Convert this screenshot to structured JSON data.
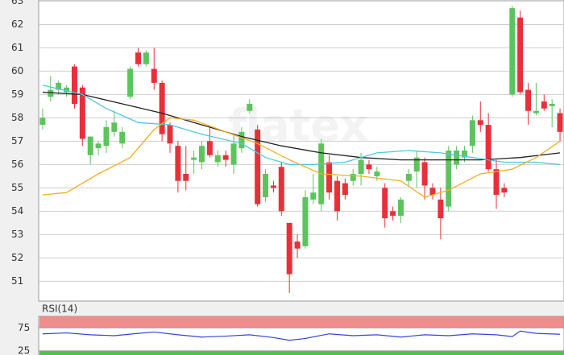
{
  "chart_data": [
    {
      "type": "candlestick",
      "watermark": "flatex",
      "up_color": "#5cc45c",
      "down_color": "#e8303a",
      "ylim": [
        50.15,
        63.05
      ],
      "yticks": [
        51,
        52,
        53,
        54,
        55,
        56,
        57,
        58,
        59,
        60,
        61,
        62,
        63
      ],
      "grid": true,
      "open": [
        57.7,
        58.9,
        59.2,
        59.1,
        60.2,
        59.3,
        56.4,
        56.7,
        56.8,
        57.4,
        56.9,
        58.9,
        60.8,
        60.3,
        60.1,
        59.5,
        57.7,
        56.8,
        55.6,
        56.2,
        56.1,
        57.0,
        56.1,
        56.4,
        56.0,
        56.7,
        58.3,
        57.5,
        54.6,
        55.1,
        55.9,
        53.5,
        52.7,
        52.5,
        54.5,
        54.3,
        56.1,
        55.3,
        55.2,
        55.3,
        55.6,
        56.0,
        55.5,
        55.0,
        54.0,
        53.8,
        55.3,
        55.7,
        56.1,
        55.0,
        54.5,
        54.2,
        56.0,
        56.3,
        56.8,
        57.9,
        57.7,
        55.8,
        55.0,
        59.0,
        62.3,
        59.2,
        58.2,
        58.7,
        58.5,
        58.2
      ],
      "high": [
        58.4,
        59.8,
        59.6,
        59.4,
        60.3,
        59.4,
        57.2,
        57.0,
        57.9,
        58.3,
        57.6,
        60.2,
        61.0,
        60.9,
        61.0,
        59.6,
        57.8,
        57.0,
        56.8,
        56.6,
        57.0,
        57.6,
        56.6,
        56.6,
        57.3,
        57.6,
        58.8,
        57.7,
        55.8,
        55.3,
        56.1,
        53.5,
        53.0,
        54.9,
        55.6,
        57.1,
        56.4,
        55.5,
        55.4,
        55.8,
        56.5,
        56.2,
        55.9,
        55.2,
        54.2,
        54.6,
        55.8,
        56.6,
        56.3,
        55.2,
        55.0,
        56.8,
        56.8,
        56.8,
        58.1,
        58.7,
        58.2,
        56.2,
        55.2,
        62.8,
        62.6,
        59.5,
        59.5,
        59.0,
        58.8,
        58.4
      ],
      "low": [
        57.5,
        58.7,
        59.0,
        58.9,
        58.4,
        56.8,
        56.0,
        56.4,
        56.5,
        57.2,
        56.7,
        58.8,
        60.2,
        60.2,
        59.2,
        57.0,
        56.5,
        54.8,
        54.9,
        55.6,
        55.8,
        56.3,
        55.9,
        55.9,
        55.6,
        56.5,
        58.2,
        54.2,
        54.4,
        54.8,
        53.8,
        50.5,
        52.0,
        52.4,
        54.3,
        54.0,
        54.5,
        53.6,
        54.5,
        55.1,
        55.1,
        55.6,
        55.3,
        53.3,
        53.6,
        53.5,
        55.1,
        55.0,
        54.5,
        54.5,
        52.8,
        54.0,
        55.8,
        56.1,
        56.5,
        57.4,
        55.7,
        54.1,
        54.6,
        58.9,
        59.0,
        57.7,
        58.1,
        58.3,
        57.6,
        57.0
      ],
      "close": [
        58.0,
        59.2,
        59.5,
        59.3,
        58.6,
        57.1,
        57.2,
        56.9,
        57.6,
        57.8,
        57.4,
        60.1,
        60.3,
        60.8,
        59.5,
        57.3,
        56.9,
        55.3,
        55.3,
        56.3,
        56.8,
        56.4,
        56.4,
        56.2,
        56.9,
        57.4,
        58.6,
        54.3,
        55.6,
        55.0,
        54.0,
        51.3,
        52.4,
        54.6,
        54.8,
        56.9,
        54.8,
        54.0,
        54.7,
        55.6,
        56.2,
        55.8,
        55.7,
        53.7,
        53.8,
        54.5,
        55.6,
        56.3,
        55.1,
        54.7,
        53.7,
        56.6,
        56.6,
        56.6,
        57.9,
        57.7,
        55.8,
        54.7,
        54.8,
        62.7,
        59.1,
        58.3,
        58.3,
        58.4,
        58.6,
        57.4
      ],
      "overlays": [
        {
          "color": "#222222",
          "x": [
            0,
            5,
            10,
            15,
            20,
            25,
            30,
            35,
            40,
            45,
            50,
            55,
            60,
            65
          ],
          "values": [
            59.1,
            59.0,
            58.6,
            58.2,
            57.7,
            57.2,
            56.8,
            56.5,
            56.3,
            56.2,
            56.2,
            56.2,
            56.3,
            56.5
          ]
        },
        {
          "color": "#4cc8e0",
          "x": [
            0,
            5,
            8,
            12,
            16,
            20,
            25,
            28,
            31,
            34,
            38,
            42,
            46,
            50,
            54,
            58,
            62,
            65
          ],
          "values": [
            59.4,
            59.0,
            58.4,
            57.8,
            57.7,
            57.3,
            56.9,
            56.3,
            56.0,
            56.0,
            56.1,
            56.5,
            56.6,
            56.5,
            56.3,
            56.1,
            56.1,
            56.0
          ]
        },
        {
          "color": "#f0b020",
          "x": [
            0,
            3,
            7,
            11,
            14,
            16,
            19,
            23,
            27,
            31,
            35,
            40,
            45,
            48,
            51,
            55,
            59,
            62,
            65
          ],
          "values": [
            54.7,
            54.8,
            55.6,
            56.3,
            57.5,
            58.0,
            57.9,
            57.4,
            56.9,
            56.2,
            55.6,
            55.5,
            55.3,
            54.6,
            54.9,
            55.6,
            55.8,
            56.3,
            57.0
          ]
        }
      ]
    },
    {
      "type": "line",
      "title": "RSI(14)",
      "color": "#3344dd",
      "overbought_color": "#f08080",
      "oversold_color": "#4cc44c",
      "ylim": [
        16,
        100
      ],
      "yticks": [
        25,
        75
      ],
      "x": [
        0,
        3,
        6,
        9,
        12,
        14,
        17,
        20,
        23,
        26,
        29,
        31,
        33,
        36,
        39,
        42,
        45,
        48,
        51,
        54,
        57,
        59,
        60,
        62,
        65
      ],
      "values": [
        62,
        64,
        60,
        58,
        63,
        66,
        60,
        55,
        57,
        60,
        54,
        48,
        52,
        62,
        58,
        60,
        55,
        60,
        58,
        62,
        60,
        56,
        68,
        63,
        61
      ]
    }
  ]
}
